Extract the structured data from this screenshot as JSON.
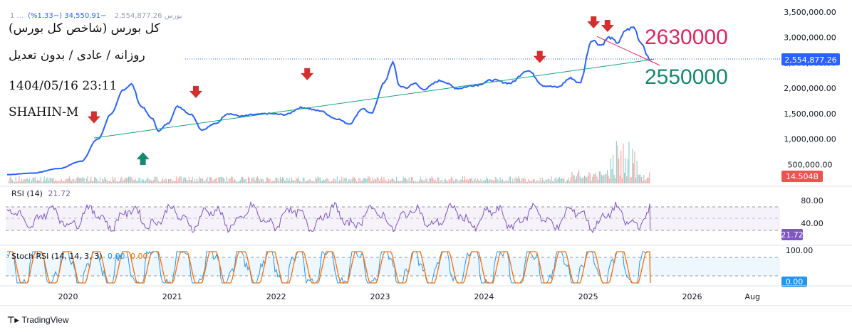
{
  "header": {
    "symbol_text": "1 ...بورس",
    "price_text": "2,554,877.26",
    "change_text": "−34,550.91 (−1.33%)"
  },
  "annotations": {
    "title": "(کل بورس (شاخص کل بورس",
    "timeframe": "روزانه / عادی / بدون تعدیل",
    "datetime": "1404/05/16 23:11",
    "author": "SHAHIN-M",
    "level_high": "2630000",
    "level_low": "2550000"
  },
  "panes": {
    "rsi_label": "RSI (14)",
    "rsi_value": "21.72",
    "stoch_label": "Stoch RSI (14, 14, 3, 3)",
    "stoch_k": "0.00",
    "stoch_d": "0.00"
  },
  "branding": {
    "name": "TradingView"
  },
  "colors": {
    "price": "#2962ff",
    "trend_up": "#13a37f",
    "trend_down": "#e0245e",
    "arrow_down": "#d32f2f",
    "arrow_up": "#13896f",
    "rsi": "#7e57c2",
    "stoch_k": "#2196f3",
    "stoch_d": "#ff6d00",
    "vol_up": "#26a69a",
    "vol_down": "#ef5350"
  },
  "chart_data": [
    {
      "type": "line",
      "name": "price",
      "x": [
        "2019-06-01",
        "2019-09-01",
        "2019-12-01",
        "2020-02-15",
        "2020-04-15",
        "2020-06-01",
        "2020-07-15",
        "2020-08-10",
        "2020-09-15",
        "2020-10-20",
        "2020-11-15",
        "2020-12-15",
        "2021-01-20",
        "2021-03-10",
        "2021-04-15",
        "2021-06-01",
        "2021-07-15",
        "2021-09-01",
        "2021-10-15",
        "2021-12-01",
        "2022-02-01",
        "2022-04-01",
        "2022-06-01",
        "2022-08-01",
        "2022-09-15",
        "2022-11-01",
        "2022-12-01",
        "2023-01-15",
        "2023-02-15",
        "2023-03-10",
        "2023-04-01",
        "2023-05-01",
        "2023-06-01",
        "2023-08-01",
        "2023-10-01",
        "2023-12-01",
        "2024-02-01",
        "2024-04-01",
        "2024-06-01",
        "2024-08-01",
        "2024-09-15",
        "2024-11-01",
        "2024-12-01",
        "2025-01-15",
        "2025-02-15",
        "2025-03-15",
        "2025-04-15",
        "2025-05-15",
        "2025-06-10",
        "2025-07-05",
        "2025-08-07"
      ],
      "values": [
        300000,
        330000,
        420000,
        560000,
        1000000,
        1500000,
        1980000,
        2080000,
        1640000,
        1420000,
        1160000,
        1300000,
        1640000,
        1480000,
        1180000,
        1300000,
        1500000,
        1450000,
        1480000,
        1500000,
        1480000,
        1620000,
        1560000,
        1400000,
        1300000,
        1600000,
        1500000,
        2100000,
        2500000,
        2050000,
        2000000,
        2100000,
        1980000,
        2150000,
        2000000,
        2060000,
        2160000,
        2100000,
        2350000,
        2050000,
        2020000,
        2200000,
        2100000,
        2950000,
        2850000,
        3000000,
        2900000,
        3150000,
        3200000,
        2900000,
        2554877.26
      ],
      "xlim": [
        "2019-06-01",
        "2026-11-01"
      ],
      "ylim": [
        0,
        3500000
      ],
      "yticks": [
        "3,500,000.00",
        "3,000,000.00",
        "2,500,000.00",
        "2,000,000.00",
        "1,500,000.00",
        "1,000,000.00",
        "500,000.00"
      ],
      "xticks": [
        "2020",
        "2021",
        "2022",
        "2023",
        "2024",
        "2025",
        "2026",
        "Aug"
      ],
      "last_label": "2,554,877.26",
      "volume_label": "14.504B",
      "trendline_up": [
        [
          "2020-04-01",
          1020000
        ],
        [
          "2025-08-20",
          2570000
        ]
      ],
      "trendline_down": [
        [
          "2025-02-01",
          3020000
        ],
        [
          "2025-09-10",
          2450000
        ]
      ],
      "arrows_down": [
        [
          "2020-04-01",
          1350000
        ],
        [
          "2021-03-25",
          1850000
        ],
        [
          "2022-04-20",
          2200000
        ],
        [
          "2024-07-15",
          2540000
        ],
        [
          "2025-01-20",
          3220000
        ],
        [
          "2025-03-10",
          3150000
        ]
      ],
      "arrows_up": [
        [
          "2020-09-20",
          600000
        ]
      ]
    },
    {
      "type": "line",
      "name": "RSI (14)",
      "ylim": [
        0,
        100
      ],
      "yticks": [
        "80.00",
        "40.00"
      ],
      "bands": [
        70,
        50,
        30
      ],
      "last_value": 21.72
    },
    {
      "type": "line",
      "name": "Stoch RSI (14, 14, 3, 3)",
      "ylim": [
        0,
        100
      ],
      "yticks": [
        "100.00"
      ],
      "bands": [
        80,
        20
      ],
      "last_value": "0.00"
    }
  ]
}
